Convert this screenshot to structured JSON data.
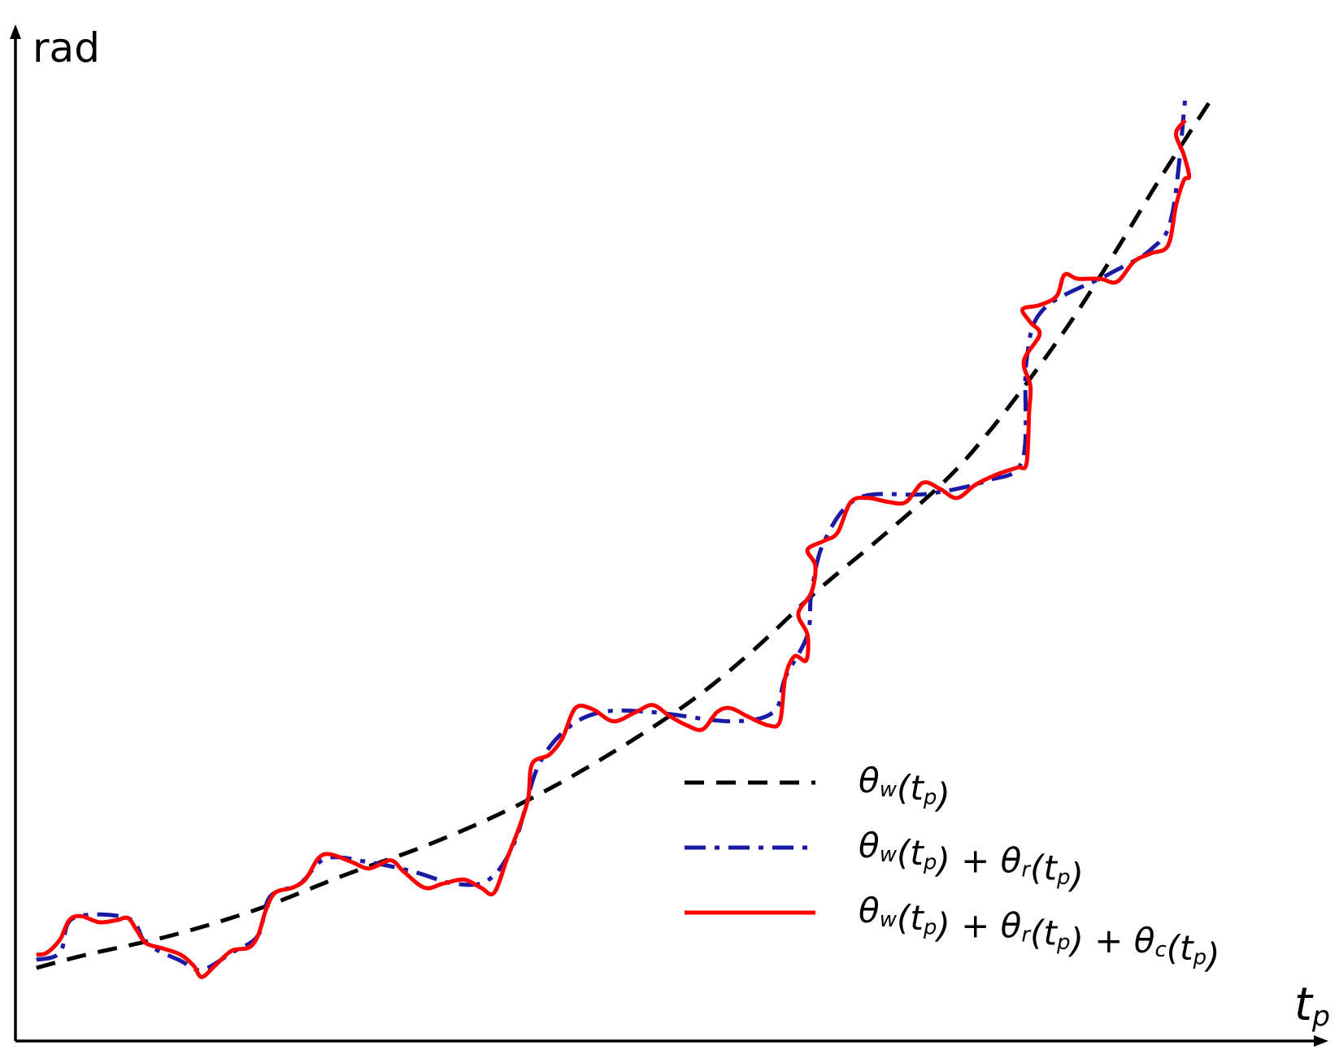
{
  "chart_data": {
    "type": "line",
    "ylabel": "rad",
    "xlabel": "t_p",
    "xlim": [
      0,
      100
    ],
    "ylim": [
      0,
      100
    ],
    "series": [
      {
        "name": "θ_w(t_p)",
        "color": "#000000",
        "style": "dashed",
        "x": [
          1.6,
          5.4,
          11.9,
          18.5,
          25.0,
          31.6,
          38.1,
          44.6,
          51.2,
          56.1,
          61.0,
          65.9,
          70.9,
          74.1,
          77.4,
          80.7,
          84.0,
          87.2,
          91.0
        ],
        "values": [
          7.2,
          8.5,
          10.4,
          13.0,
          16.3,
          19.4,
          23.1,
          27.7,
          33.2,
          38.3,
          44.2,
          49.5,
          55.2,
          59.8,
          65.3,
          71.3,
          78.0,
          84.8,
          92.4
        ]
      },
      {
        "name": "θ_w(t_p) + θ_r(t_p)",
        "color": "#1a1aa6",
        "style": "dashdot",
        "x": [
          1.6,
          3.4,
          4.4,
          8.6,
          10.0,
          12.6,
          14.2,
          16.5,
          18.5,
          19.4,
          21.7,
          23.7,
          27.0,
          30.3,
          33.5,
          36.1,
          38.1,
          39.8,
          42.0,
          44.7,
          48.6,
          54.5,
          57.8,
          58.7,
          60.4,
          60.7,
          61.7,
          64.3,
          69.5,
          74.1,
          76.8,
          77.1,
          78.4,
          83.3,
          86.6,
          88.2,
          89.2
        ],
        "values": [
          8.0,
          8.7,
          12.1,
          12.1,
          9.6,
          7.9,
          7.0,
          8.7,
          10.4,
          14.2,
          15.5,
          18.0,
          17.6,
          16.7,
          15.5,
          15.9,
          19.7,
          26.9,
          30.7,
          32.4,
          32.4,
          31.5,
          32.4,
          35.8,
          40.0,
          44.2,
          49.3,
          53.5,
          53.9,
          55.2,
          57.3,
          67.0,
          72.1,
          75.5,
          78.0,
          81.4,
          92.8
        ]
      },
      {
        "name": "θ_w(t_p) + θ_r(t_p) + θ_c(t_p)",
        "color": "#ff0000",
        "style": "solid",
        "x": [
          1.6,
          2.4,
          3.4,
          4.1,
          5.0,
          6.4,
          7.7,
          8.6,
          9.3,
          10.0,
          11.3,
          12.6,
          13.6,
          14.2,
          15.2,
          16.5,
          17.8,
          18.5,
          19.1,
          19.8,
          21.1,
          22.1,
          23.1,
          24.0,
          25.7,
          27.0,
          28.6,
          29.6,
          31.2,
          32.6,
          34.2,
          35.5,
          36.5,
          37.5,
          38.4,
          39.1,
          39.4,
          40.7,
          41.7,
          42.7,
          44.0,
          45.6,
          47.3,
          48.6,
          49.9,
          51.2,
          52.4,
          53.5,
          54.5,
          55.8,
          57.4,
          58.3,
          58.7,
          59.4,
          60.3,
          60.4,
          59.7,
          60.7,
          61.0,
          60.4,
          61.7,
          62.7,
          63.7,
          65.0,
          66.6,
          67.9,
          69.2,
          70.5,
          71.8,
          73.2,
          74.8,
          76.4,
          77.1,
          77.3,
          77.4,
          76.9,
          78.1,
          77.4,
          76.8,
          78.1,
          79.4,
          80.0,
          81.0,
          82.7,
          84.0,
          85.3,
          86.6,
          87.9,
          88.5,
          89.1,
          89.5,
          89.1,
          88.5,
          89.2
        ],
        "values": [
          8.5,
          8.7,
          10.0,
          11.9,
          12.3,
          11.7,
          11.9,
          12.1,
          10.8,
          9.6,
          9.1,
          8.5,
          7.4,
          6.3,
          7.4,
          8.9,
          9.2,
          10.4,
          12.9,
          14.6,
          15.1,
          15.9,
          18.0,
          18.4,
          17.6,
          17.0,
          17.8,
          16.7,
          15.1,
          15.5,
          15.9,
          15.1,
          14.6,
          18.0,
          21.0,
          23.9,
          27.3,
          28.2,
          29.8,
          32.8,
          32.7,
          31.5,
          32.4,
          33.1,
          32.0,
          31.1,
          30.7,
          32.4,
          32.8,
          32.0,
          31.1,
          31.5,
          35.8,
          37.9,
          37.5,
          40.0,
          42.1,
          44.2,
          46.8,
          48.4,
          49.3,
          50.1,
          53.1,
          53.5,
          53.1,
          53.1,
          55.0,
          54.4,
          53.5,
          54.8,
          55.8,
          56.5,
          56.9,
          62.0,
          64.5,
          67.0,
          69.6,
          70.8,
          72.1,
          72.5,
          73.4,
          75.5,
          75.1,
          75.1,
          74.8,
          76.8,
          77.6,
          78.4,
          82.3,
          84.8,
          85.2,
          87.3,
          89.4,
          90.7
        ]
      }
    ]
  }
}
